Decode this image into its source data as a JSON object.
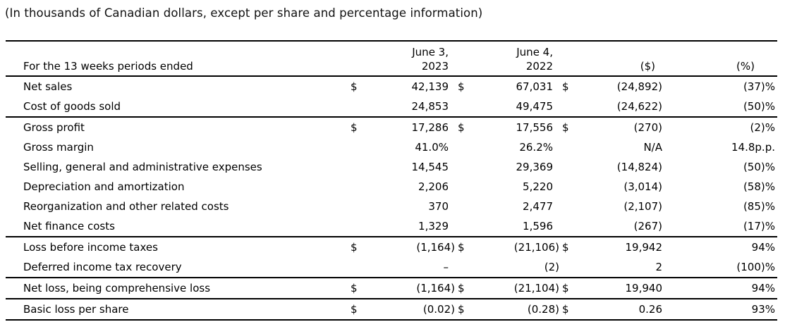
{
  "note": "(In thousands of Canadian dollars, except per share and percentage information)",
  "colors": {
    "background": "#ffffff",
    "text": "#000000",
    "rule": "#000000"
  },
  "table": {
    "header": {
      "row_label": "For the 13 weeks periods ended",
      "col_2023_line1": "June 3,",
      "col_2023_line2": "2023",
      "col_2022_line1": "June 4,",
      "col_2022_line2": "2022",
      "col_change_dollar": "($)",
      "col_change_pct": "(%)"
    },
    "rows": [
      {
        "label": "Net sales",
        "cur1": "$",
        "v2023": "42,139",
        "cur2": "$",
        "v2022": "67,031",
        "cur3": "$",
        "chg": "(24,892)",
        "pct": "(37)%",
        "rule_below": false
      },
      {
        "label": "Cost of goods sold",
        "cur1": "",
        "v2023": "24,853",
        "cur2": "",
        "v2022": "49,475",
        "cur3": "",
        "chg": "(24,622)",
        "pct": "(50)%",
        "rule_below": true
      },
      {
        "label": "Gross profit",
        "cur1": "$",
        "v2023": "17,286",
        "cur2": "$",
        "v2022": "17,556",
        "cur3": "$",
        "chg": "(270)",
        "pct": "(2)%",
        "rule_below": false
      },
      {
        "label": "Gross margin",
        "cur1": "",
        "v2023": "41.0%",
        "cur2": "",
        "v2022": "26.2%",
        "cur3": "",
        "chg": "N/A",
        "pct": "14.8p.p.",
        "rule_below": false
      },
      {
        "label": "Selling, general and administrative expenses",
        "cur1": "",
        "v2023": "14,545",
        "cur2": "",
        "v2022": "29,369",
        "cur3": "",
        "chg": "(14,824)",
        "pct": "(50)%",
        "rule_below": false
      },
      {
        "label": "Depreciation and amortization",
        "cur1": "",
        "v2023": "2,206",
        "cur2": "",
        "v2022": "5,220",
        "cur3": "",
        "chg": "(3,014)",
        "pct": "(58)%",
        "rule_below": false
      },
      {
        "label": "Reorganization and other related costs",
        "cur1": "",
        "v2023": "370",
        "cur2": "",
        "v2022": "2,477",
        "cur3": "",
        "chg": "(2,107)",
        "pct": "(85)%",
        "rule_below": false
      },
      {
        "label": "Net finance costs",
        "cur1": "",
        "v2023": "1,329",
        "cur2": "",
        "v2022": "1,596",
        "cur3": "",
        "chg": "(267)",
        "pct": "(17)%",
        "rule_below": true
      },
      {
        "label": "Loss before income taxes",
        "cur1": "$",
        "v2023": "(1,164)",
        "cur2": "$",
        "v2022": "(21,106)",
        "cur3": "$",
        "chg": "19,942",
        "pct": "94%",
        "rule_below": false
      },
      {
        "label": "Deferred income tax recovery",
        "cur1": "",
        "v2023": "–",
        "cur2": "",
        "v2022": "(2)",
        "cur3": "",
        "chg": "2",
        "pct": "(100)%",
        "rule_below": true
      },
      {
        "label": "Net loss, being comprehensive loss",
        "cur1": "$",
        "v2023": "(1,164)",
        "cur2": "$",
        "v2022": "(21,104)",
        "cur3": "$",
        "chg": "19,940",
        "pct": "94%",
        "rule_below": true
      },
      {
        "label": "Basic loss per share",
        "cur1": "$",
        "v2023": "(0.02)",
        "cur2": "$",
        "v2022": "(0.28)",
        "cur3": "$",
        "chg": "0.26",
        "pct": "93%",
        "rule_below": true
      }
    ]
  }
}
